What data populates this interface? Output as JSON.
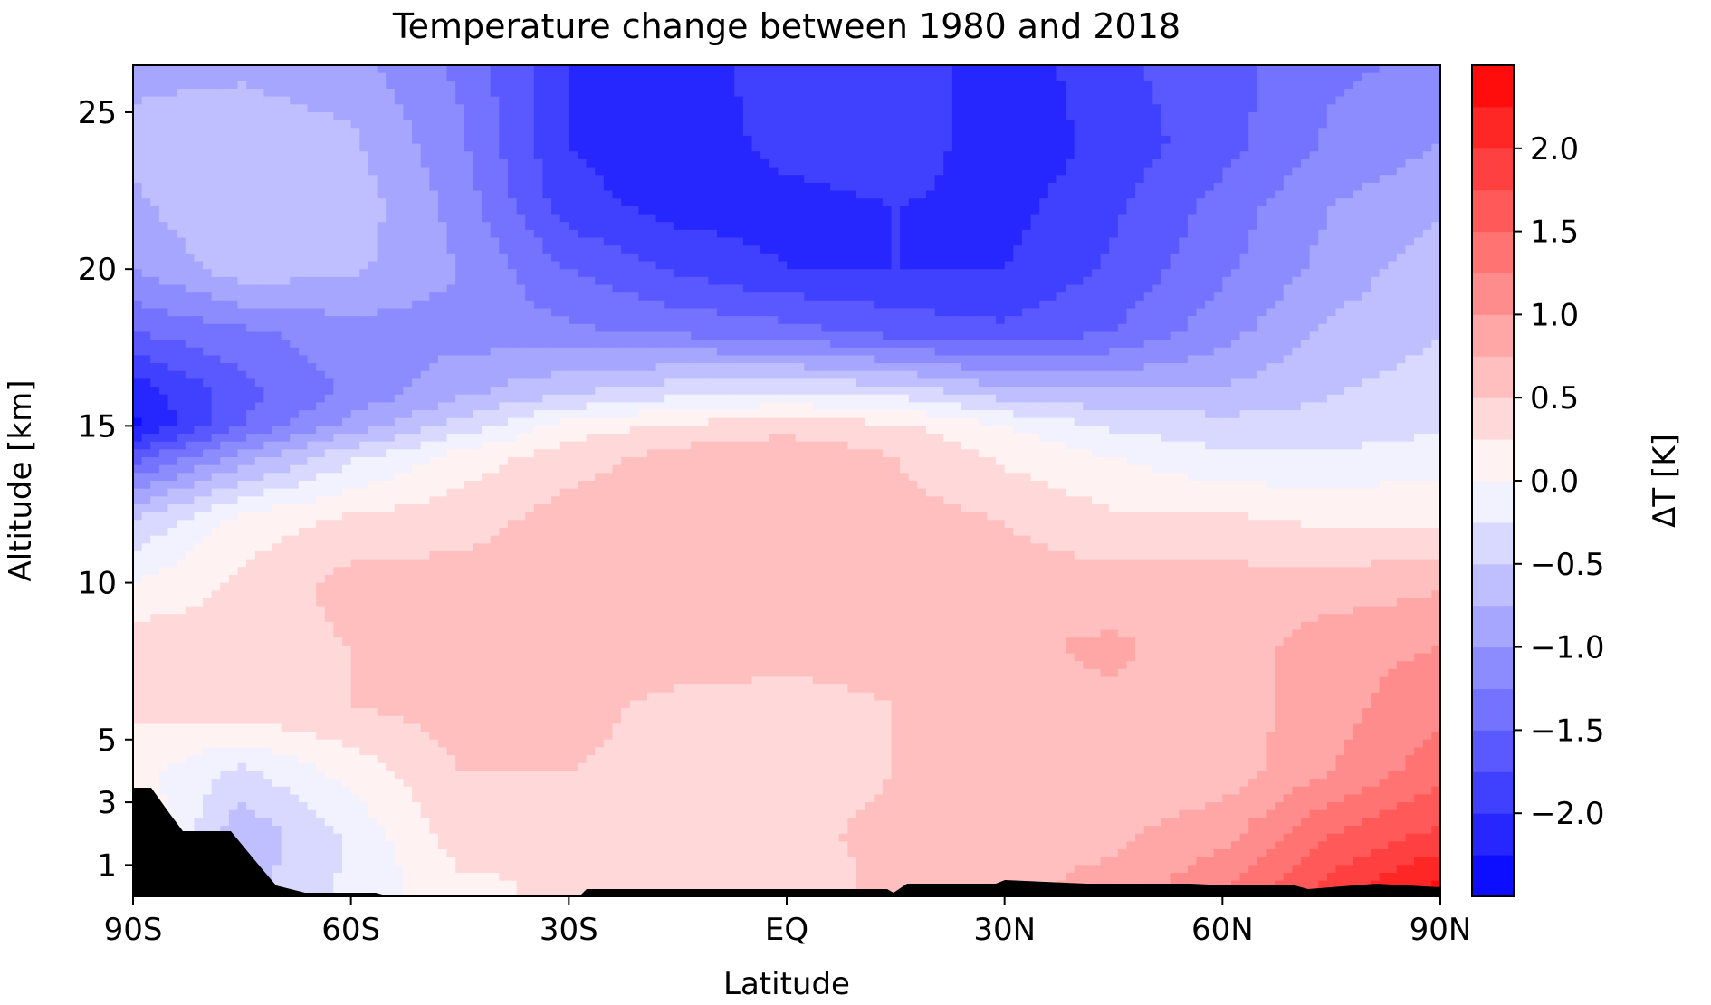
{
  "chart_data": {
    "type": "heatmap",
    "subtype": "filled-contour",
    "title": "Temperature change between 1980 and 2018",
    "xlabel": "Latitude",
    "ylabel": "Altitude [km]",
    "colorbar_label": "ΔT [K]",
    "xlim": [
      -90,
      90
    ],
    "ylim": [
      0,
      26.5
    ],
    "x_ticks": [
      {
        "value": -90,
        "label": "90S"
      },
      {
        "value": -60,
        "label": "60S"
      },
      {
        "value": -30,
        "label": "30S"
      },
      {
        "value": 0,
        "label": "EQ"
      },
      {
        "value": 30,
        "label": "30N"
      },
      {
        "value": 60,
        "label": "60N"
      },
      {
        "value": 90,
        "label": "90N"
      }
    ],
    "y_ticks": [
      {
        "value": 1,
        "label": "1"
      },
      {
        "value": 3,
        "label": "3"
      },
      {
        "value": 5,
        "label": "5"
      },
      {
        "value": 10,
        "label": "10"
      },
      {
        "value": 15,
        "label": "15"
      },
      {
        "value": 20,
        "label": "20"
      },
      {
        "value": 25,
        "label": "25"
      }
    ],
    "colorbar": {
      "range": [
        -2.5,
        2.5
      ],
      "level_step": 0.25,
      "colormap": "bwr",
      "ticks": [
        {
          "value": -2.0,
          "label": "−2.0"
        },
        {
          "value": -1.5,
          "label": "−1.5"
        },
        {
          "value": -1.0,
          "label": "−1.0"
        },
        {
          "value": -0.5,
          "label": "−0.5"
        },
        {
          "value": 0.0,
          "label": "0.0"
        },
        {
          "value": 0.5,
          "label": "0.5"
        },
        {
          "value": 1.0,
          "label": "1.0"
        },
        {
          "value": 1.5,
          "label": "1.5"
        },
        {
          "value": 2.0,
          "label": "2.0"
        }
      ]
    },
    "latitudes": [
      -90,
      -75,
      -60,
      -45,
      -30,
      -15,
      0,
      15,
      30,
      45,
      60,
      75,
      90
    ],
    "altitudes": [
      0.5,
      2,
      4,
      6,
      8,
      10,
      12,
      14,
      15,
      16,
      18,
      20,
      22,
      24,
      26.5
    ],
    "values": [
      [
        0.3,
        -0.6,
        -0.2,
        0.2,
        0.3,
        0.3,
        0.3,
        0.6,
        0.7,
        0.8,
        1.2,
        1.8,
        2.3
      ],
      [
        0.3,
        -0.7,
        -0.2,
        0.4,
        0.4,
        0.4,
        0.4,
        0.6,
        0.7,
        0.7,
        0.9,
        1.5,
        1.8
      ],
      [
        0.1,
        -0.3,
        0.1,
        0.5,
        0.5,
        0.4,
        0.3,
        0.5,
        0.7,
        0.6,
        0.6,
        1.0,
        1.4
      ],
      [
        0.3,
        0.4,
        0.5,
        0.6,
        0.6,
        0.4,
        0.4,
        0.5,
        0.7,
        0.7,
        0.6,
        0.9,
        1.2
      ],
      [
        0.4,
        0.4,
        0.5,
        0.6,
        0.6,
        0.7,
        0.6,
        0.6,
        0.7,
        0.8,
        0.6,
        0.9,
        1.0
      ],
      [
        0.0,
        0.3,
        0.6,
        0.6,
        0.6,
        0.6,
        0.6,
        0.6,
        0.6,
        0.6,
        0.6,
        0.6,
        0.7
      ],
      [
        -0.5,
        0.1,
        0.3,
        0.4,
        0.6,
        0.6,
        0.7,
        0.6,
        0.5,
        0.3,
        0.3,
        0.2,
        0.2
      ],
      [
        -1.6,
        -0.9,
        -0.3,
        0.1,
        0.4,
        0.6,
        0.7,
        0.5,
        0.2,
        0.0,
        -0.2,
        -0.2,
        -0.1
      ],
      [
        -2.3,
        -1.5,
        -0.9,
        -0.4,
        0.1,
        0.3,
        0.4,
        0.3,
        0.0,
        -0.3,
        -0.4,
        -0.4,
        -0.3
      ],
      [
        -2.2,
        -1.6,
        -1.2,
        -0.8,
        -0.5,
        -0.3,
        -0.2,
        -0.3,
        -0.6,
        -0.7,
        -0.7,
        -0.5,
        -0.4
      ],
      [
        -1.5,
        -1.3,
        -1.1,
        -1.1,
        -1.2,
        -1.3,
        -1.4,
        -1.6,
        -1.7,
        -1.5,
        -1.1,
        -0.7,
        -0.5
      ],
      [
        -1.0,
        -0.6,
        -0.7,
        -1.0,
        -1.5,
        -1.8,
        -2.0,
        -2.0,
        -2.0,
        -1.7,
        -1.3,
        -0.9,
        -0.6
      ],
      [
        -0.8,
        -0.5,
        -0.6,
        -1.1,
        -1.9,
        -2.1,
        -2.1,
        -2.0,
        -2.1,
        -1.8,
        -1.4,
        -1.0,
        -0.8
      ],
      [
        -0.7,
        -0.6,
        -0.7,
        -1.2,
        -2.0,
        -2.2,
        -1.9,
        -1.8,
        -2.2,
        -1.9,
        -1.6,
        -1.2,
        -1.0
      ],
      [
        -0.8,
        -0.8,
        -0.9,
        -1.3,
        -2.0,
        -2.2,
        -1.8,
        -1.8,
        -2.2,
        -1.8,
        -1.6,
        -1.3,
        -1.2
      ]
    ],
    "grid": false
  }
}
